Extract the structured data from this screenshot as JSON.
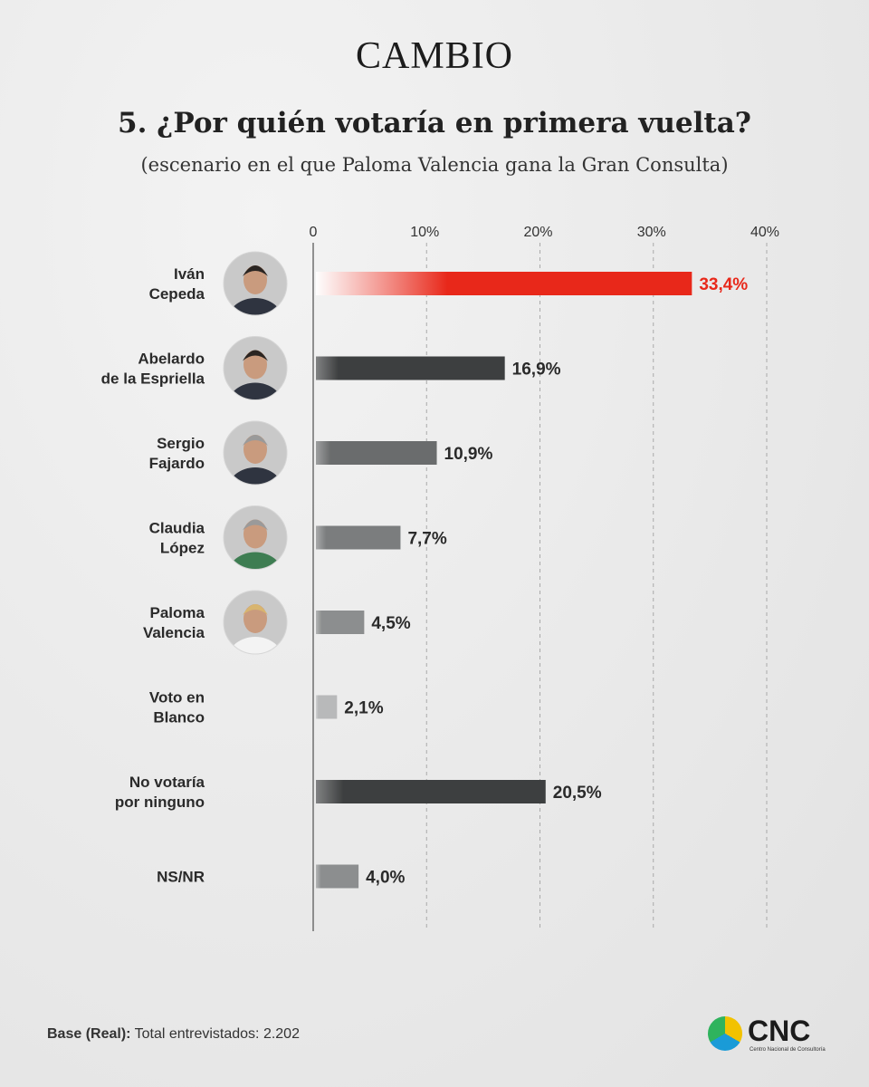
{
  "header": {
    "brand": "CAMBIO",
    "title": "5. ¿Por quién votaría en primera vuelta?",
    "subtitle": "(escenario en el que Paloma Valencia gana la Gran Consulta)"
  },
  "chart_data": {
    "type": "bar",
    "orientation": "horizontal",
    "title": "5. ¿Por quién votaría en primera vuelta?",
    "subtitle": "(escenario en el que Paloma Valencia gana la Gran Consulta)",
    "categories": [
      [
        "Iván",
        "Cepeda"
      ],
      [
        "Abelardo",
        "de la Espriella"
      ],
      [
        "Sergio",
        "Fajardo"
      ],
      [
        "Claudia",
        "López"
      ],
      [
        "Paloma",
        "Valencia"
      ],
      [
        "Voto en",
        "Blanco"
      ],
      [
        "No votaría",
        "por ninguno"
      ],
      [
        "NS/NR"
      ]
    ],
    "values": [
      33.4,
      16.9,
      10.9,
      7.7,
      4.5,
      2.1,
      20.5,
      4.0
    ],
    "value_labels": [
      "33,4%",
      "16,9%",
      "10,9%",
      "7,7%",
      "4,5%",
      "2,1%",
      "20,5%",
      "4,0%"
    ],
    "has_photo": [
      true,
      true,
      true,
      true,
      true,
      false,
      false,
      false
    ],
    "bar_colors": [
      "#e8281a",
      "#3d3f40",
      "#6a6c6d",
      "#7b7d7e",
      "#8c8e8f",
      "#b8b9ba",
      "#3d3f40",
      "#8c8e8f"
    ],
    "label_colors": [
      "#e8281a",
      "#2a2a2a",
      "#2a2a2a",
      "#2a2a2a",
      "#2a2a2a",
      "#2a2a2a",
      "#2a2a2a",
      "#2a2a2a"
    ],
    "xlim": [
      0,
      40
    ],
    "ticks": [
      0,
      10,
      20,
      30,
      40
    ],
    "tick_labels": [
      "0",
      "10%",
      "20%",
      "30%",
      "40%"
    ],
    "grid": "dashed vertical"
  },
  "footer": {
    "base_label": "Base (Real):",
    "base_text": "Total entrevistados: 2.202",
    "logo_text": "CNC",
    "logo_subtext": "Centro Nacional de Consultoría"
  },
  "colors": {
    "highlight": "#e8281a",
    "dark_bar": "#3d3f40",
    "background": "#ececec"
  }
}
